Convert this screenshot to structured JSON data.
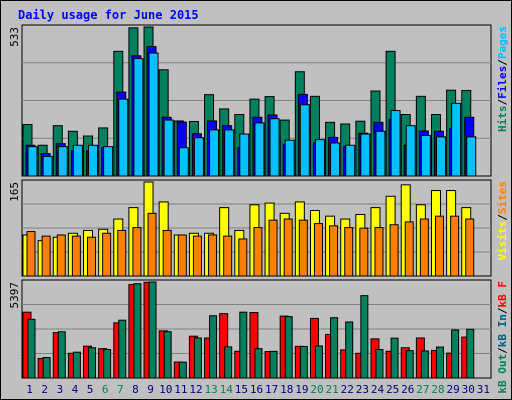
{
  "title": "Daily usage for June 2015",
  "colors": {
    "background": "#c0c0c0",
    "hits": "#00805c",
    "files": "#0000ff",
    "pages": "#00c0ff",
    "visits": "#ffff00",
    "sites": "#ff8000",
    "kb_in": "#006080",
    "kb_out": "#00805c",
    "kb_f": "#ff0000",
    "weekend_label": "#00805c",
    "weekday_label": "#000080",
    "title": "#0000ff"
  },
  "chart_data": [
    {
      "type": "bar",
      "panel": "hits-files-pages",
      "y_max_label": "533",
      "ylim": [
        0,
        533
      ],
      "categories": [
        "1",
        "2",
        "3",
        "4",
        "5",
        "6",
        "7",
        "8",
        "9",
        "10",
        "11",
        "12",
        "13",
        "14",
        "15",
        "16",
        "17",
        "18",
        "19",
        "20",
        "21",
        "22",
        "23",
        "24",
        "25",
        "26",
        "27",
        "28",
        "29",
        "30",
        "31"
      ],
      "weekend_days": [
        "6",
        "7",
        "13",
        "14",
        "20",
        "21",
        "27",
        "28"
      ],
      "legend_parts": [
        {
          "text": "Hits",
          "color": "#00805c"
        },
        {
          "text": "/",
          "color": "#000000"
        },
        {
          "text": "Files",
          "color": "#0000ff"
        },
        {
          "text": "/",
          "color": "#000000"
        },
        {
          "text": "Pages",
          "color": "#00c0ff"
        }
      ],
      "series": [
        {
          "name": "Hits",
          "values": [
            184,
            110,
            180,
            160,
            143,
            172,
            446,
            530,
            533,
            380,
            197,
            195,
            291,
            240,
            220,
            275,
            284,
            200,
            373,
            285,
            192,
            186,
            196,
            304,
            446,
            220,
            285,
            220,
            307,
            306,
            0
          ]
        },
        {
          "name": "Files",
          "values": [
            110,
            80,
            116,
            90,
            90,
            101,
            300,
            430,
            463,
            210,
            193,
            151,
            197,
            180,
            101,
            210,
            218,
            113,
            292,
            118,
            138,
            105,
            153,
            192,
            202,
            110,
            161,
            160,
            170,
            210,
            0
          ]
        },
        {
          "name": "Pages",
          "values": [
            105,
            70,
            105,
            110,
            110,
            105,
            275,
            420,
            440,
            200,
            101,
            137,
            165,
            165,
            150,
            190,
            205,
            128,
            255,
            130,
            118,
            110,
            150,
            160,
            234,
            180,
            145,
            140,
            260,
            140,
            0
          ]
        }
      ]
    },
    {
      "type": "bar",
      "panel": "visits-sites",
      "y_max_label": "165",
      "ylim": [
        0,
        165
      ],
      "categories": [
        "1",
        "2",
        "3",
        "4",
        "5",
        "6",
        "7",
        "8",
        "9",
        "10",
        "11",
        "12",
        "13",
        "14",
        "15",
        "16",
        "17",
        "18",
        "19",
        "20",
        "21",
        "22",
        "23",
        "24",
        "25",
        "26",
        "27",
        "28",
        "29",
        "30",
        "31"
      ],
      "legend_parts": [
        {
          "text": "Visits",
          "color": "#ffff00"
        },
        {
          "text": "/",
          "color": "#000000"
        },
        {
          "text": "Sites",
          "color": "#ff8000"
        }
      ],
      "series": [
        {
          "name": "Visits",
          "values": [
            72,
            62,
            68,
            75,
            80,
            82,
            100,
            120,
            165,
            130,
            72,
            75,
            75,
            120,
            80,
            125,
            128,
            110,
            130,
            115,
            105,
            100,
            108,
            120,
            140,
            160,
            125,
            150,
            150,
            120,
            0
          ]
        },
        {
          "name": "Sites",
          "values": [
            78,
            70,
            72,
            70,
            68,
            75,
            80,
            85,
            110,
            80,
            72,
            70,
            72,
            70,
            65,
            85,
            98,
            100,
            98,
            92,
            88,
            85,
            84,
            85,
            90,
            95,
            100,
            105,
            105,
            100,
            0
          ]
        }
      ]
    },
    {
      "type": "bar",
      "panel": "kbf-kbin-kbout",
      "y_max_label": "5397",
      "ylim": [
        0,
        5397
      ],
      "categories": [
        "1",
        "2",
        "3",
        "4",
        "5",
        "6",
        "7",
        "8",
        "9",
        "10",
        "11",
        "12",
        "13",
        "14",
        "15",
        "16",
        "17",
        "18",
        "19",
        "20",
        "21",
        "22",
        "23",
        "24",
        "25",
        "26",
        "27",
        "28",
        "29",
        "30",
        "31"
      ],
      "legend_parts": [
        {
          "text": "kB Out",
          "color": "#00805c"
        },
        {
          "text": "/",
          "color": "#000000"
        },
        {
          "text": "kB In",
          "color": "#006080"
        },
        {
          "text": "/",
          "color": "#000000"
        },
        {
          "text": "kB F",
          "color": "#ff0000"
        }
      ],
      "series": [
        {
          "name": "kB F",
          "values": [
            3700,
            1100,
            2550,
            1390,
            1790,
            1650,
            3100,
            5250,
            5380,
            2650,
            900,
            2350,
            2250,
            3620,
            1500,
            3680,
            1490,
            3480,
            1780,
            3350,
            2450,
            1580,
            1390,
            2200,
            1500,
            1700,
            2250,
            1550,
            1400,
            2300,
            0
          ]
        },
        {
          "name": "kB Out",
          "values": [
            3300,
            1150,
            2600,
            1450,
            1700,
            1600,
            3250,
            5300,
            5397,
            2600,
            890,
            2250,
            3500,
            1750,
            3700,
            1650,
            1500,
            3450,
            1770,
            1800,
            3390,
            3150,
            4630,
            1600,
            2240,
            1540,
            1520,
            1740,
            2700,
            2740,
            0
          ]
        }
      ]
    }
  ]
}
